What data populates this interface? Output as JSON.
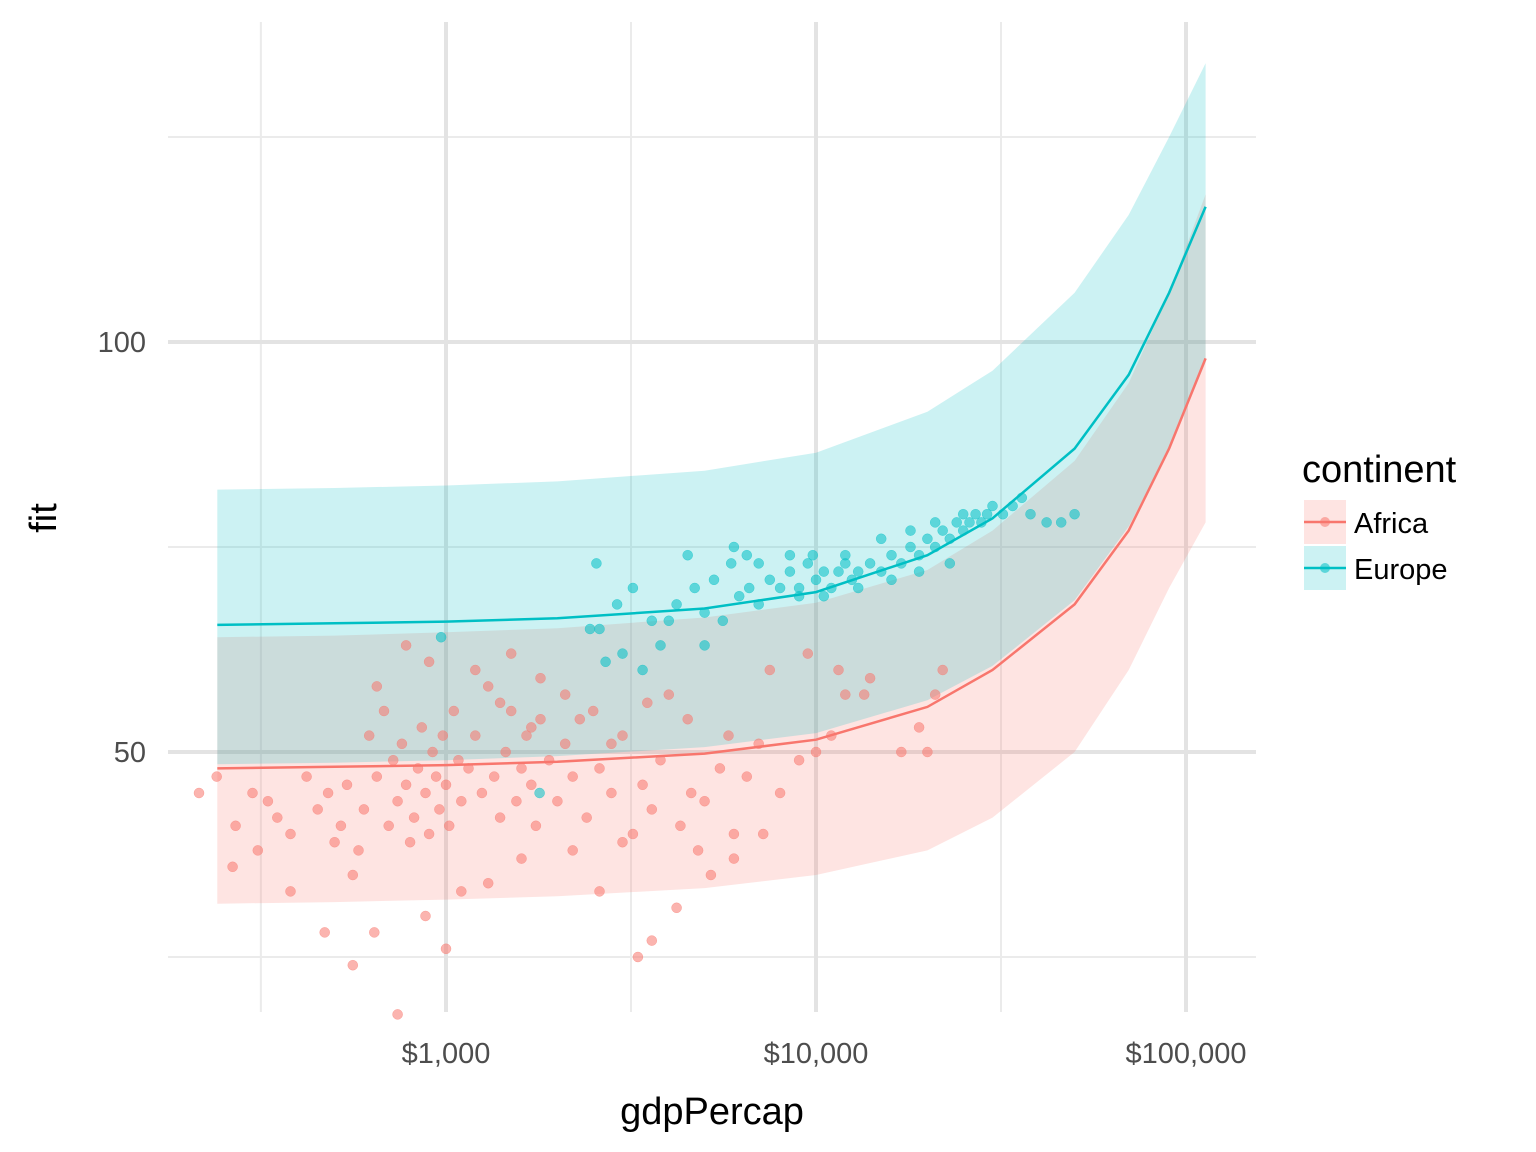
{
  "chart_data": {
    "type": "scatter",
    "title": "",
    "xlabel": "gdpPercap",
    "ylabel": "fit",
    "x_scale": "log10",
    "xlim": [
      200,
      130000
    ],
    "ylim": [
      20,
      122
    ],
    "x_ticks": [
      {
        "value": 1000,
        "label": "$1,000"
      },
      {
        "value": 10000,
        "label": "$10,000"
      },
      {
        "value": 100000,
        "label": "$100,000"
      }
    ],
    "x_minor_ticks": [
      316,
      3162,
      31623
    ],
    "y_ticks": [
      {
        "value": 50,
        "label": "50"
      },
      {
        "value": 100,
        "label": "100"
      }
    ],
    "y_minor_ticks": [
      25,
      75,
      125
    ],
    "grid": true,
    "legend": {
      "title": "continent",
      "position": "right"
    },
    "colors": {
      "Africa": "#F8766D",
      "Europe": "#00BFC4"
    },
    "series": [
      {
        "name": "Africa",
        "color": "#F8766D",
        "fit": {
          "x": [
            241,
            500,
            1000,
            2000,
            5000,
            10000,
            20000,
            30000,
            50000,
            70000,
            90000,
            113000
          ],
          "y": [
            48.0,
            48.2,
            48.4,
            48.8,
            49.8,
            51.5,
            55.5,
            60.0,
            68.0,
            77.0,
            87.0,
            98.0
          ]
        },
        "ribbon": {
          "x": [
            241,
            500,
            1000,
            2000,
            5000,
            10000,
            20000,
            30000,
            50000,
            70000,
            90000,
            113000
          ],
          "lower": [
            31.5,
            31.7,
            32.0,
            32.4,
            33.4,
            35.0,
            38.0,
            42.0,
            50.0,
            60.0,
            70.0,
            78.0
          ],
          "upper": [
            64.0,
            64.2,
            64.6,
            65.1,
            66.4,
            68.2,
            72.2,
            77.0,
            85.5,
            95.0,
            106.0,
            118.0
          ]
        },
        "points": [
          [
            215,
            45
          ],
          [
            240,
            47
          ],
          [
            270,
            41
          ],
          [
            265,
            36
          ],
          [
            300,
            45
          ],
          [
            310,
            38
          ],
          [
            330,
            44
          ],
          [
            350,
            42
          ],
          [
            380,
            40
          ],
          [
            420,
            47
          ],
          [
            450,
            43
          ],
          [
            480,
            45
          ],
          [
            500,
            39
          ],
          [
            520,
            41
          ],
          [
            540,
            46
          ],
          [
            560,
            35
          ],
          [
            580,
            38
          ],
          [
            600,
            43
          ],
          [
            620,
            52
          ],
          [
            650,
            47
          ],
          [
            680,
            55
          ],
          [
            700,
            41
          ],
          [
            720,
            49
          ],
          [
            740,
            44
          ],
          [
            760,
            51
          ],
          [
            780,
            46
          ],
          [
            800,
            39
          ],
          [
            820,
            42
          ],
          [
            840,
            48
          ],
          [
            860,
            53
          ],
          [
            880,
            45
          ],
          [
            900,
            40
          ],
          [
            920,
            50
          ],
          [
            940,
            47
          ],
          [
            960,
            43
          ],
          [
            980,
            52
          ],
          [
            1000,
            46
          ],
          [
            1020,
            41
          ],
          [
            1050,
            55
          ],
          [
            1080,
            49
          ],
          [
            1100,
            44
          ],
          [
            1150,
            48
          ],
          [
            1200,
            52
          ],
          [
            1250,
            45
          ],
          [
            1300,
            58
          ],
          [
            1350,
            47
          ],
          [
            1400,
            42
          ],
          [
            1450,
            50
          ],
          [
            1500,
            55
          ],
          [
            1550,
            44
          ],
          [
            1600,
            48
          ],
          [
            1650,
            52
          ],
          [
            1700,
            46
          ],
          [
            1750,
            41
          ],
          [
            1800,
            54
          ],
          [
            1900,
            49
          ],
          [
            2000,
            44
          ],
          [
            2100,
            51
          ],
          [
            2200,
            47
          ],
          [
            2400,
            42
          ],
          [
            2500,
            55
          ],
          [
            2600,
            48
          ],
          [
            2800,
            45
          ],
          [
            3000,
            52
          ],
          [
            3200,
            40
          ],
          [
            3400,
            46
          ],
          [
            3600,
            43
          ],
          [
            3800,
            49
          ],
          [
            4000,
            57
          ],
          [
            4300,
            41
          ],
          [
            4600,
            45
          ],
          [
            5000,
            44
          ],
          [
            5500,
            48
          ],
          [
            6000,
            40
          ],
          [
            6500,
            47
          ],
          [
            7000,
            51
          ],
          [
            8000,
            45
          ],
          [
            9000,
            49
          ],
          [
            10000,
            50
          ],
          [
            11000,
            52
          ],
          [
            12000,
            57
          ],
          [
            13500,
            57
          ],
          [
            17000,
            50
          ],
          [
            19000,
            53
          ],
          [
            21000,
            57
          ],
          [
            740,
            18
          ],
          [
            1000,
            26
          ],
          [
            3300,
            25
          ],
          [
            3600,
            27
          ],
          [
            560,
            24
          ],
          [
            470,
            28
          ],
          [
            640,
            28
          ],
          [
            380,
            33
          ],
          [
            880,
            30
          ],
          [
            1100,
            33
          ],
          [
            1300,
            34
          ],
          [
            1600,
            37
          ],
          [
            2200,
            38
          ],
          [
            2600,
            33
          ],
          [
            3000,
            39
          ],
          [
            4200,
            31
          ],
          [
            4800,
            38
          ],
          [
            5200,
            35
          ],
          [
            6000,
            37
          ],
          [
            7200,
            40
          ],
          [
            1200,
            60
          ],
          [
            1500,
            62
          ],
          [
            1800,
            59
          ],
          [
            2100,
            57
          ],
          [
            650,
            58
          ],
          [
            780,
            63
          ],
          [
            900,
            61
          ],
          [
            1400,
            56
          ],
          [
            1700,
            53
          ],
          [
            2300,
            54
          ],
          [
            2800,
            51
          ],
          [
            3500,
            56
          ],
          [
            4500,
            54
          ],
          [
            5800,
            52
          ],
          [
            7500,
            60
          ],
          [
            9500,
            62
          ],
          [
            11500,
            60
          ],
          [
            14000,
            59
          ],
          [
            20000,
            50
          ],
          [
            22000,
            60
          ]
        ]
      },
      {
        "name": "Europe",
        "color": "#00BFC4",
        "fit": {
          "x": [
            241,
            500,
            1000,
            2000,
            5000,
            10000,
            20000,
            30000,
            50000,
            70000,
            90000,
            113000
          ],
          "y": [
            65.5,
            65.7,
            65.9,
            66.3,
            67.5,
            69.5,
            74.0,
            78.5,
            87.0,
            96.0,
            106.0,
            116.5
          ]
        },
        "ribbon": {
          "x": [
            241,
            500,
            1000,
            2000,
            5000,
            10000,
            20000,
            30000,
            50000,
            70000,
            90000,
            113000
          ],
          "lower": [
            48.5,
            48.7,
            49.0,
            49.5,
            50.6,
            52.3,
            56.3,
            60.5,
            68.5,
            77.5,
            87.0,
            97.5
          ],
          "upper": [
            82.0,
            82.2,
            82.5,
            83.0,
            84.3,
            86.5,
            91.5,
            96.5,
            106.0,
            115.5,
            125.0,
            134.0
          ]
        },
        "points": [
          [
            970,
            64
          ],
          [
            1790,
            45
          ],
          [
            2450,
            65
          ],
          [
            2550,
            73
          ],
          [
            2600,
            65
          ],
          [
            2700,
            61
          ],
          [
            2900,
            68
          ],
          [
            3000,
            62
          ],
          [
            3200,
            70
          ],
          [
            3600,
            66
          ],
          [
            4000,
            66
          ],
          [
            4500,
            74
          ],
          [
            4700,
            70
          ],
          [
            5000,
            67
          ],
          [
            5300,
            71
          ],
          [
            5600,
            66
          ],
          [
            5900,
            73
          ],
          [
            6200,
            69
          ],
          [
            6600,
            70
          ],
          [
            7000,
            68
          ],
          [
            7500,
            71
          ],
          [
            8000,
            70
          ],
          [
            8500,
            72
          ],
          [
            9000,
            70
          ],
          [
            9500,
            73
          ],
          [
            10000,
            71
          ],
          [
            10500,
            72
          ],
          [
            11000,
            70
          ],
          [
            11500,
            72
          ],
          [
            12000,
            73
          ],
          [
            12500,
            71
          ],
          [
            13000,
            72
          ],
          [
            14000,
            73
          ],
          [
            15000,
            72
          ],
          [
            16000,
            74
          ],
          [
            17000,
            73
          ],
          [
            18000,
            75
          ],
          [
            19000,
            74
          ],
          [
            20000,
            76
          ],
          [
            21000,
            75
          ],
          [
            22000,
            77
          ],
          [
            23000,
            76
          ],
          [
            24000,
            78
          ],
          [
            25000,
            77
          ],
          [
            26000,
            78
          ],
          [
            27000,
            79
          ],
          [
            28000,
            78
          ],
          [
            29000,
            79
          ],
          [
            30000,
            80
          ],
          [
            32000,
            79
          ],
          [
            34000,
            80
          ],
          [
            36000,
            81
          ],
          [
            38000,
            79
          ],
          [
            42000,
            78
          ],
          [
            46000,
            78
          ],
          [
            50000,
            79
          ],
          [
            6000,
            75
          ],
          [
            6500,
            74
          ],
          [
            7000,
            73
          ],
          [
            4200,
            68
          ],
          [
            3800,
            63
          ],
          [
            3400,
            60
          ],
          [
            5000,
            63
          ],
          [
            8500,
            74
          ],
          [
            9800,
            74
          ],
          [
            12000,
            74
          ],
          [
            15000,
            76
          ],
          [
            18000,
            77
          ],
          [
            21000,
            78
          ],
          [
            25000,
            79
          ],
          [
            9000,
            69
          ],
          [
            10500,
            69
          ],
          [
            13000,
            70
          ],
          [
            16000,
            71
          ],
          [
            19000,
            72
          ],
          [
            23000,
            73
          ]
        ]
      }
    ]
  }
}
